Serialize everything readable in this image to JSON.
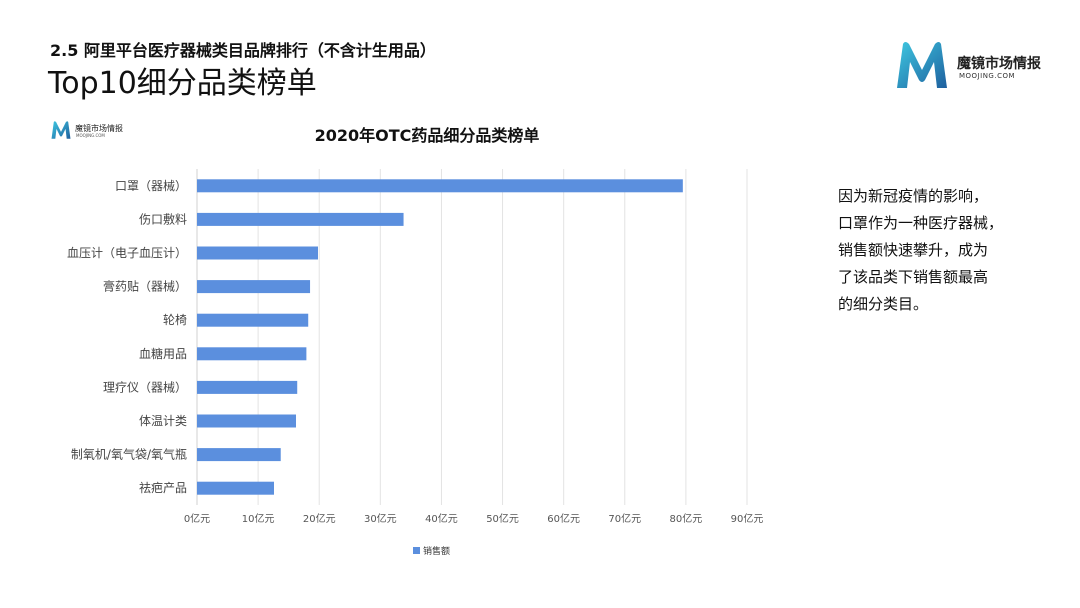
{
  "header": {
    "subtitle": "2.5 阿里平台医疗器械类目品牌排行（不含计生用品）",
    "title": "Top10细分品类榜单"
  },
  "logo": {
    "brand": "魔镜市场情报",
    "url": "MOOJING.COM",
    "color_primary": "#1aa6c8",
    "color_secondary": "#1e5f9e"
  },
  "note": {
    "lines": [
      "因为新冠疫情的影响，",
      "口罩作为一种医疗器械，",
      "销售额快速攀升，成为",
      "了该品类下销售额最高",
      "的细分类目。"
    ]
  },
  "chart_data": {
    "type": "bar",
    "orientation": "horizontal",
    "title": "2020年OTC药品细分品类榜单",
    "categories": [
      "口罩（器械）",
      "伤口敷料",
      "血压计（电子血压计）",
      "膏药贴（器械）",
      "轮椅",
      "血糖用品",
      "理疗仪（器械）",
      "体温计类",
      "制氧机/氧气袋/氧气瓶",
      "祛疤产品"
    ],
    "series": [
      {
        "name": "销售额",
        "values": [
          79.5,
          33.8,
          19.8,
          18.5,
          18.2,
          17.9,
          16.4,
          16.2,
          13.7,
          12.6
        ],
        "color": "#5b8fde"
      }
    ],
    "xlim": [
      0,
      90
    ],
    "xticks": [
      "0亿元",
      "10亿元",
      "20亿元",
      "30亿元",
      "40亿元",
      "50亿元",
      "60亿元",
      "70亿元",
      "80亿元",
      "90亿元"
    ],
    "grid": "vertical",
    "legend": "bottom"
  }
}
